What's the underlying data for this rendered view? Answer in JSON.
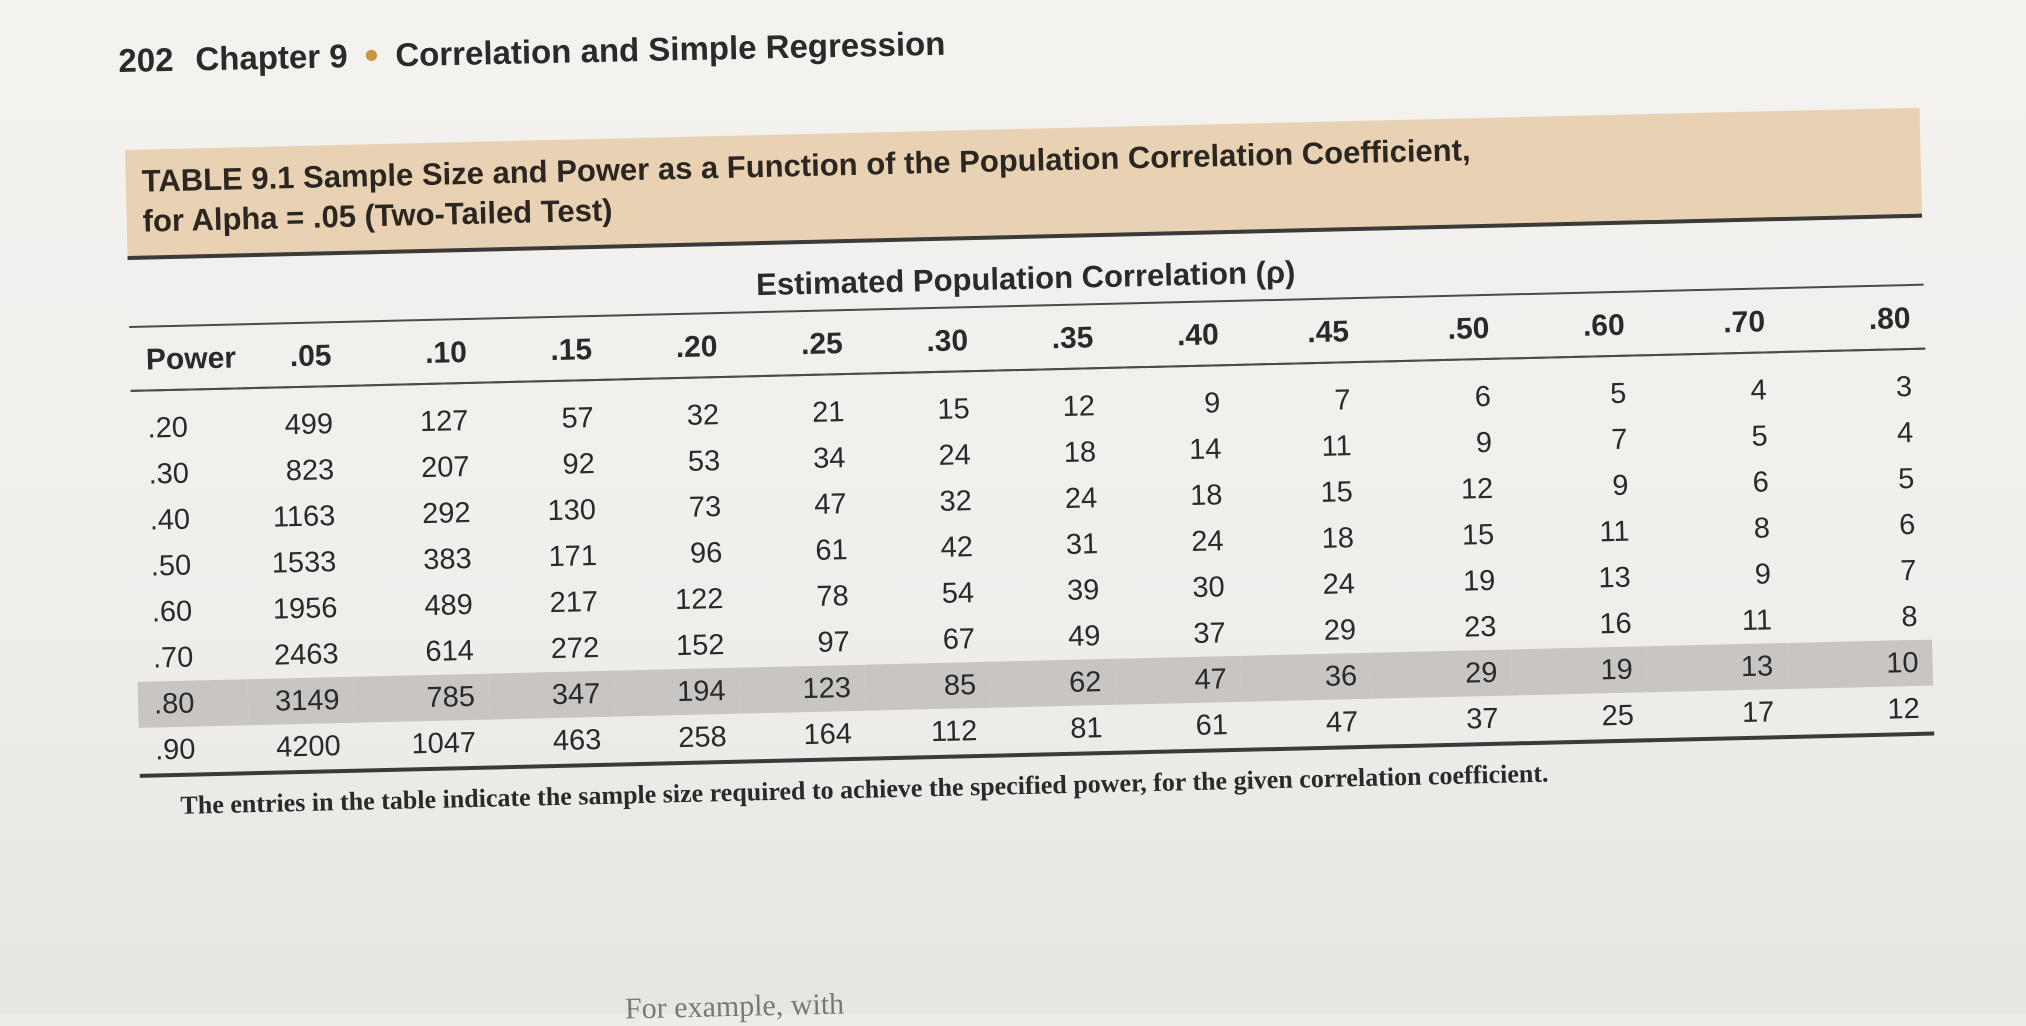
{
  "running_head": {
    "page_number": "202",
    "chapter": "Chapter 9",
    "title": "Correlation and Simple Regression"
  },
  "table": {
    "caption_line1": "TABLE 9.1 Sample Size and Power as a Function of the Population Correlation Coefficient,",
    "caption_line2": "for Alpha = .05 (Two-Tailed Test)",
    "spanner": "Estimated Population Correlation (ρ)",
    "row_header": "Power",
    "columns": [
      ".05",
      ".10",
      ".15",
      ".20",
      ".25",
      ".30",
      ".35",
      ".40",
      ".45",
      ".50",
      ".60",
      ".70",
      ".80"
    ],
    "rows": [
      {
        "power": ".20",
        "values": [
          "499",
          "127",
          "57",
          "32",
          "21",
          "15",
          "12",
          "9",
          "7",
          "6",
          "5",
          "4",
          "3"
        ]
      },
      {
        "power": ".30",
        "values": [
          "823",
          "207",
          "92",
          "53",
          "34",
          "24",
          "18",
          "14",
          "11",
          "9",
          "7",
          "5",
          "4"
        ]
      },
      {
        "power": ".40",
        "values": [
          "1163",
          "292",
          "130",
          "73",
          "47",
          "32",
          "24",
          "18",
          "15",
          "12",
          "9",
          "6",
          "5"
        ]
      },
      {
        "power": ".50",
        "values": [
          "1533",
          "383",
          "171",
          "96",
          "61",
          "42",
          "31",
          "24",
          "18",
          "15",
          "11",
          "8",
          "6"
        ]
      },
      {
        "power": ".60",
        "values": [
          "1956",
          "489",
          "217",
          "122",
          "78",
          "54",
          "39",
          "30",
          "24",
          "19",
          "13",
          "9",
          "7"
        ]
      },
      {
        "power": ".70",
        "values": [
          "2463",
          "614",
          "272",
          "152",
          "97",
          "67",
          "49",
          "37",
          "29",
          "23",
          "16",
          "11",
          "8"
        ]
      },
      {
        "power": ".80",
        "values": [
          "3149",
          "785",
          "347",
          "194",
          "123",
          "85",
          "62",
          "47",
          "36",
          "29",
          "19",
          "13",
          "10"
        ]
      },
      {
        "power": ".90",
        "values": [
          "4200",
          "1047",
          "463",
          "258",
          "164",
          "112",
          "81",
          "61",
          "47",
          "37",
          "25",
          "17",
          "12"
        ]
      }
    ],
    "note": "The entries in the table indicate the sample size required to achieve the specified power, for the given correlation coefficient."
  },
  "footer_partial": "For example, with"
}
